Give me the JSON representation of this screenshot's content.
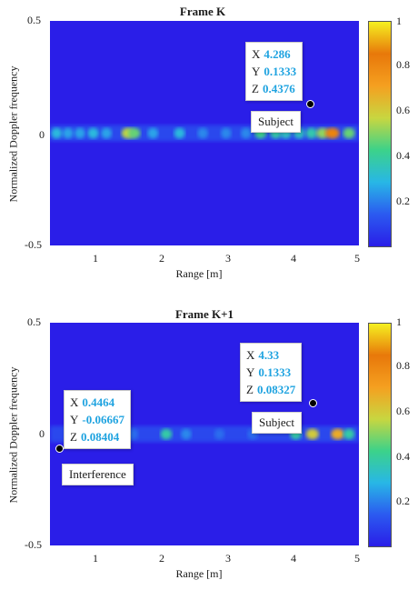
{
  "chart_data": [
    {
      "type": "heatmap",
      "title": "Frame K",
      "xlabel": "Range [m]",
      "ylabel": "Normalized Doppler frequency",
      "xlim": [
        0.35,
        5.0
      ],
      "ylim": [
        -0.5,
        0.5
      ],
      "xticks": [
        "1",
        "2",
        "3",
        "4",
        "5"
      ],
      "yticks": [
        "0.5",
        "0",
        "-0.5"
      ],
      "colorbar": {
        "min": 0,
        "max": 1,
        "ticks": [
          "1",
          "0.8",
          "0.6",
          "0.4",
          "0.2"
        ]
      },
      "colormap": [
        "#2a1ee8",
        "#2b5af0",
        "#28b7e6",
        "#3cd28a",
        "#c8d640",
        "#f5a020",
        "#e8780a"
      ],
      "doppler_band_y": 0.0,
      "peaks": [
        {
          "x": 0.45,
          "v": 0.35
        },
        {
          "x": 0.62,
          "v": 0.3
        },
        {
          "x": 0.8,
          "v": 0.3
        },
        {
          "x": 1.0,
          "v": 0.35
        },
        {
          "x": 1.2,
          "v": 0.3
        },
        {
          "x": 1.52,
          "v": 0.65
        },
        {
          "x": 1.62,
          "v": 0.55
        },
        {
          "x": 1.9,
          "v": 0.3
        },
        {
          "x": 2.3,
          "v": 0.35
        },
        {
          "x": 2.65,
          "v": 0.25
        },
        {
          "x": 3.0,
          "v": 0.25
        },
        {
          "x": 3.3,
          "v": 0.25
        },
        {
          "x": 3.52,
          "v": 0.5
        },
        {
          "x": 3.75,
          "v": 0.45
        },
        {
          "x": 3.9,
          "v": 0.4
        },
        {
          "x": 4.1,
          "v": 0.4
        },
        {
          "x": 4.286,
          "v": 0.4376
        },
        {
          "x": 4.45,
          "v": 0.6
        },
        {
          "x": 4.6,
          "v": 0.95
        },
        {
          "x": 4.85,
          "v": 0.55
        }
      ],
      "datatip": {
        "x_label": "X",
        "x": "4.286",
        "y_label": "Y",
        "y": "0.1333",
        "z_label": "Z",
        "z": "0.4376"
      },
      "marker": {
        "x": 4.286,
        "y": 0.1333
      },
      "annotation": "Subject"
    },
    {
      "type": "heatmap",
      "title": "Frame K+1",
      "xlabel": "Range [m]",
      "ylabel": "Normalized Doppler frequency",
      "xlim": [
        0.35,
        5.0
      ],
      "ylim": [
        -0.5,
        0.5
      ],
      "xticks": [
        "1",
        "2",
        "3",
        "4",
        "5"
      ],
      "yticks": [
        "0.5",
        "0",
        "-0.5"
      ],
      "colorbar": {
        "min": 0,
        "max": 1,
        "ticks": [
          "1",
          "0.8",
          "0.6",
          "0.4",
          "0.2"
        ]
      },
      "colormap": [
        "#2a1ee8",
        "#2b5af0",
        "#28b7e6",
        "#3cd28a",
        "#c8d640",
        "#f5a020",
        "#e8780a"
      ],
      "doppler_band_y": 0.0,
      "peaks": [
        {
          "x": 1.3,
          "v": 0.25
        },
        {
          "x": 1.6,
          "v": 0.2
        },
        {
          "x": 2.1,
          "v": 0.45
        },
        {
          "x": 2.4,
          "v": 0.25
        },
        {
          "x": 2.9,
          "v": 0.2
        },
        {
          "x": 3.4,
          "v": 0.2
        },
        {
          "x": 4.05,
          "v": 0.45
        },
        {
          "x": 4.3,
          "v": 0.7
        },
        {
          "x": 4.68,
          "v": 0.8
        },
        {
          "x": 4.85,
          "v": 0.45
        }
      ],
      "datatips": [
        {
          "x_label": "X",
          "x": "4.33",
          "y_label": "Y",
          "y": "0.1333",
          "z_label": "Z",
          "z": "0.08327"
        },
        {
          "x_label": "X",
          "x": "0.4464",
          "y_label": "Y",
          "y": "-0.06667",
          "z_label": "Z",
          "z": "0.08404"
        }
      ],
      "markers": [
        {
          "x": 4.33,
          "y": 0.1333
        },
        {
          "x": 0.4464,
          "y": -0.06667
        }
      ],
      "annotations": [
        "Subject",
        "Interference"
      ]
    }
  ]
}
